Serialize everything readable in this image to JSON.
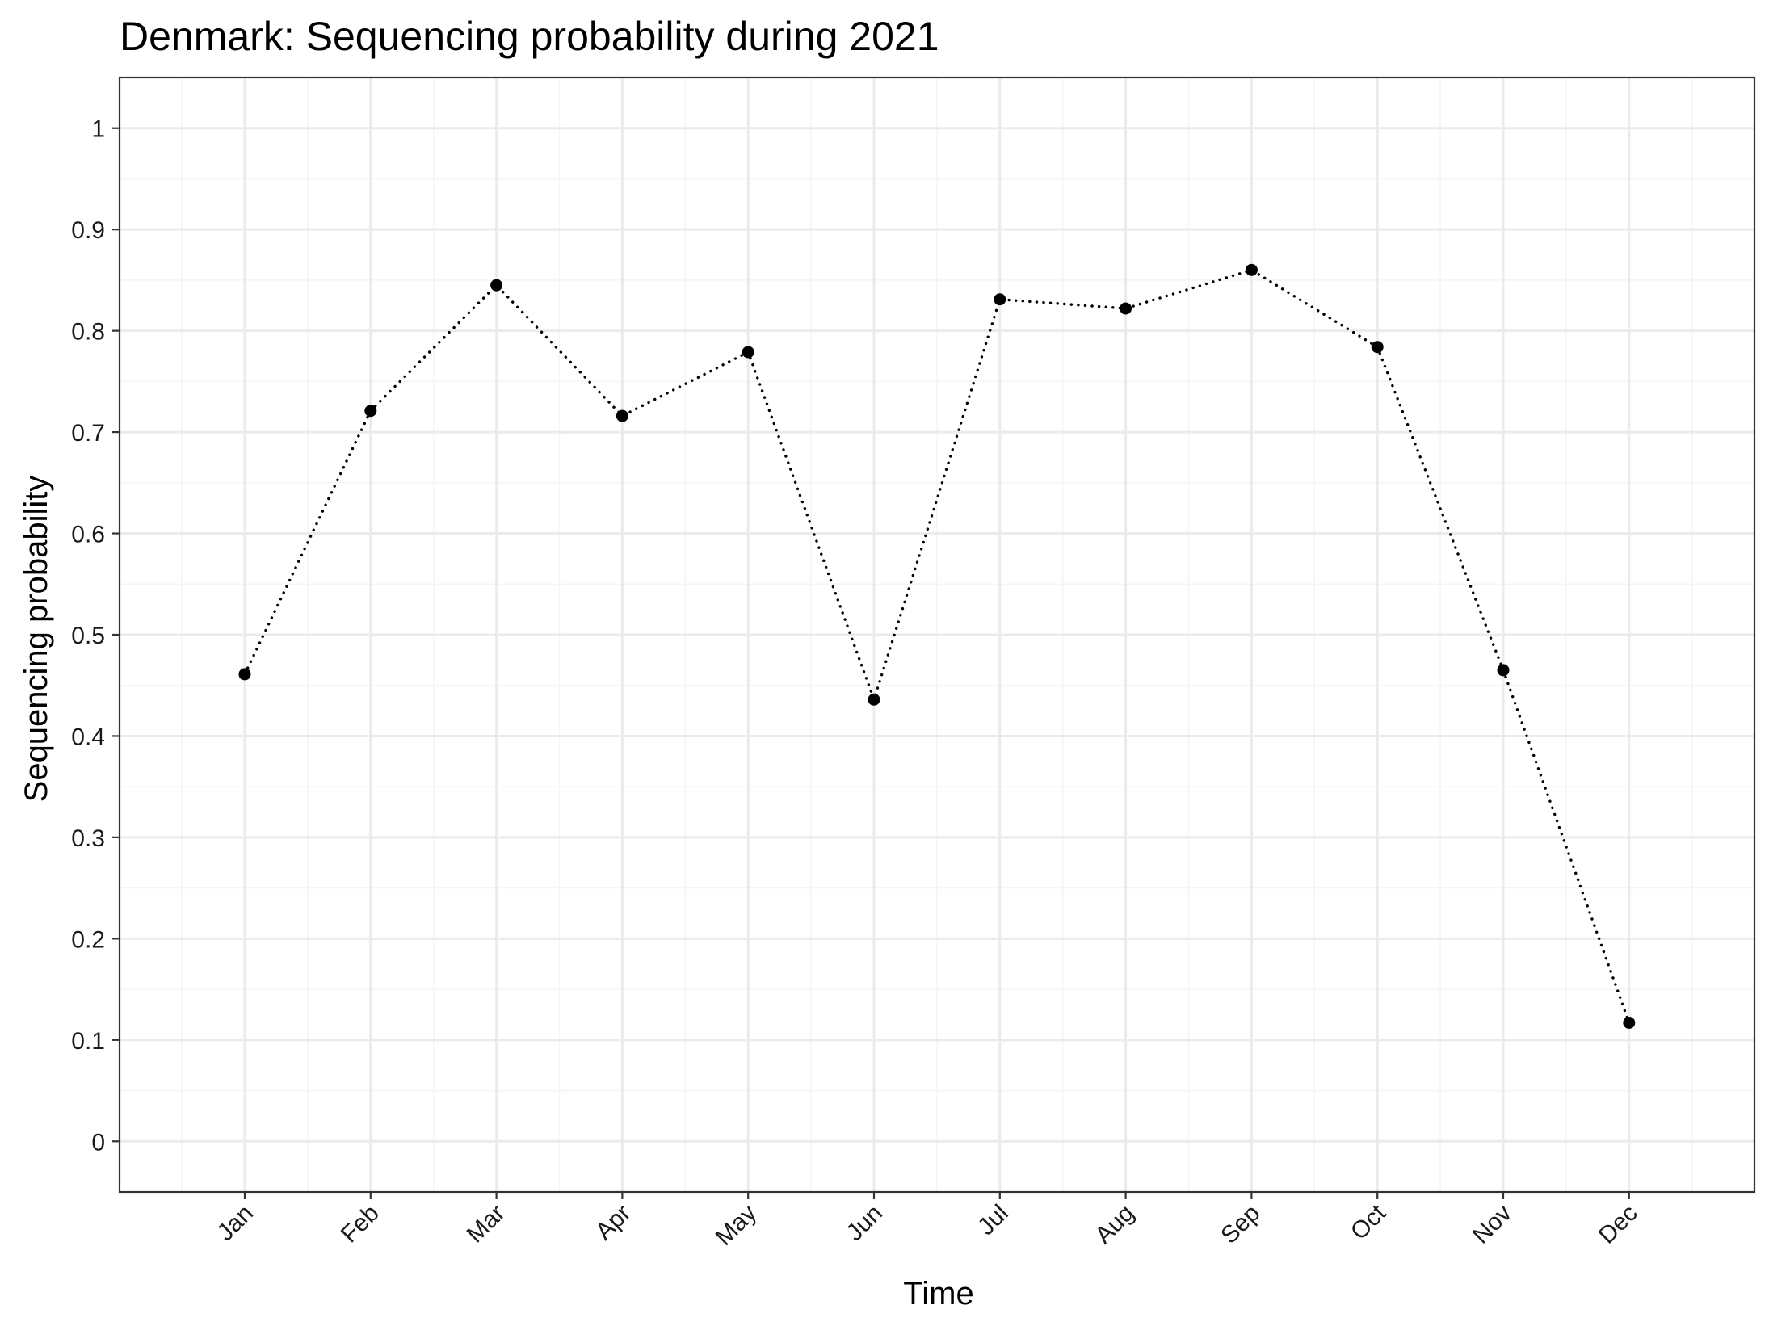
{
  "chart_data": {
    "type": "line",
    "title": "Denmark: Sequencing probability during 2021",
    "xlabel": "Time",
    "ylabel": "Sequencing probability",
    "categories": [
      "Jan",
      "Feb",
      "Mar",
      "Apr",
      "May",
      "Jun",
      "Jul",
      "Aug",
      "Sep",
      "Oct",
      "Nov",
      "Dec"
    ],
    "values": [
      0.461,
      0.721,
      0.845,
      0.716,
      0.779,
      0.436,
      0.831,
      0.822,
      0.86,
      0.784,
      0.465,
      0.117
    ],
    "ylim": [
      -0.05,
      1.05
    ],
    "yticks": [
      "0",
      "0.1",
      "0.2",
      "0.3",
      "0.4",
      "0.5",
      "0.6",
      "0.7",
      "0.8",
      "0.9",
      "1"
    ],
    "line_style": "dotted",
    "marker": "point",
    "grid": true,
    "legend": "none",
    "colors": {
      "line": "#000000",
      "point": "#000000",
      "grid_major": "#ebebeb",
      "grid_minor": "#f5f5f5",
      "panel_border": "#333333"
    }
  }
}
